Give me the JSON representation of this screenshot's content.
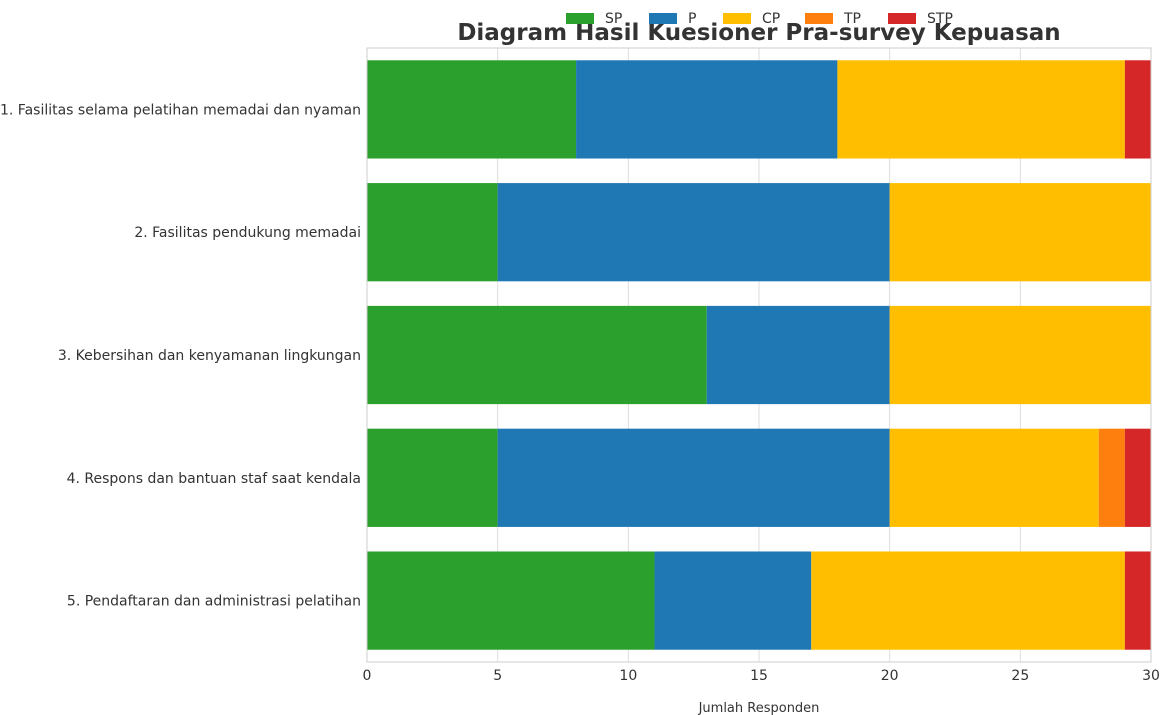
{
  "chart_data": {
    "type": "bar",
    "orientation": "horizontal",
    "stacked": true,
    "title": "Diagram Hasil Kuesioner Pra-survey Kepuasan",
    "xlabel": "Jumlah Responden",
    "ylabel": "",
    "xlim": [
      0,
      30
    ],
    "xticks": [
      0,
      5,
      10,
      15,
      20,
      25,
      30
    ],
    "grid": true,
    "legend_position": "top-center",
    "categories": [
      "1. Fasilitas selama pelatihan memadai dan nyaman",
      "2. Fasilitas pendukung memadai",
      "3. Kebersihan dan kenyamanan lingkungan",
      "4. Respons dan bantuan staf saat kendala",
      "5. Pendaftaran dan administrasi pelatihan"
    ],
    "series": [
      {
        "name": "SP",
        "color": "#2ca02c",
        "values": [
          8,
          5,
          13,
          5,
          11
        ]
      },
      {
        "name": "P",
        "color": "#1f77b4",
        "values": [
          10,
          15,
          7,
          15,
          6
        ]
      },
      {
        "name": "CP",
        "color": "#ffbf00",
        "values": [
          11,
          10,
          10,
          8,
          12
        ]
      },
      {
        "name": "TP",
        "color": "#ff7f0e",
        "values": [
          0,
          0,
          0,
          1,
          0
        ]
      },
      {
        "name": "STP",
        "color": "#d62728",
        "values": [
          1,
          0,
          0,
          1,
          1
        ]
      }
    ]
  }
}
